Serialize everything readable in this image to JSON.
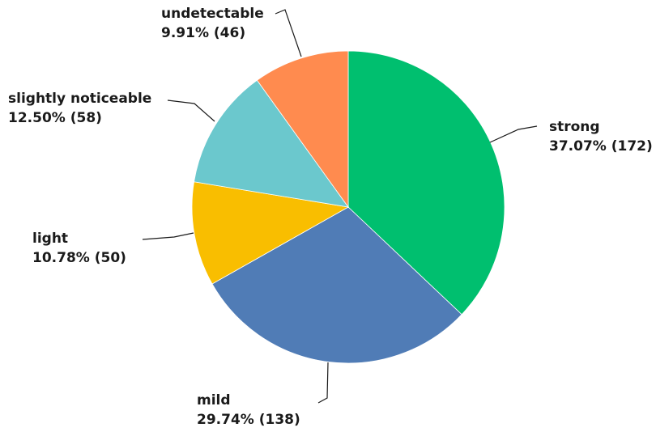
{
  "chart_data": {
    "type": "pie",
    "title": "",
    "slices": [
      {
        "label": "strong",
        "percent": 37.07,
        "count": 172,
        "value_text": "37.07% (172)",
        "color": "#00BF6F"
      },
      {
        "label": "mild",
        "percent": 29.74,
        "count": 138,
        "value_text": "29.74% (138)",
        "color": "#507CB6"
      },
      {
        "label": "light",
        "percent": 10.78,
        "count": 50,
        "value_text": "10.78% (50)",
        "color": "#F9BE00"
      },
      {
        "label": "slightly noticeable",
        "percent": 12.5,
        "count": 58,
        "value_text": "12.50% (58)",
        "color": "#6BC8CD"
      },
      {
        "label": "undetectable",
        "percent": 9.91,
        "count": 46,
        "value_text": "9.91% (46)",
        "color": "#FF8B4F"
      }
    ],
    "start_angle": "12 o'clock",
    "direction": "clockwise",
    "legend": "none"
  }
}
